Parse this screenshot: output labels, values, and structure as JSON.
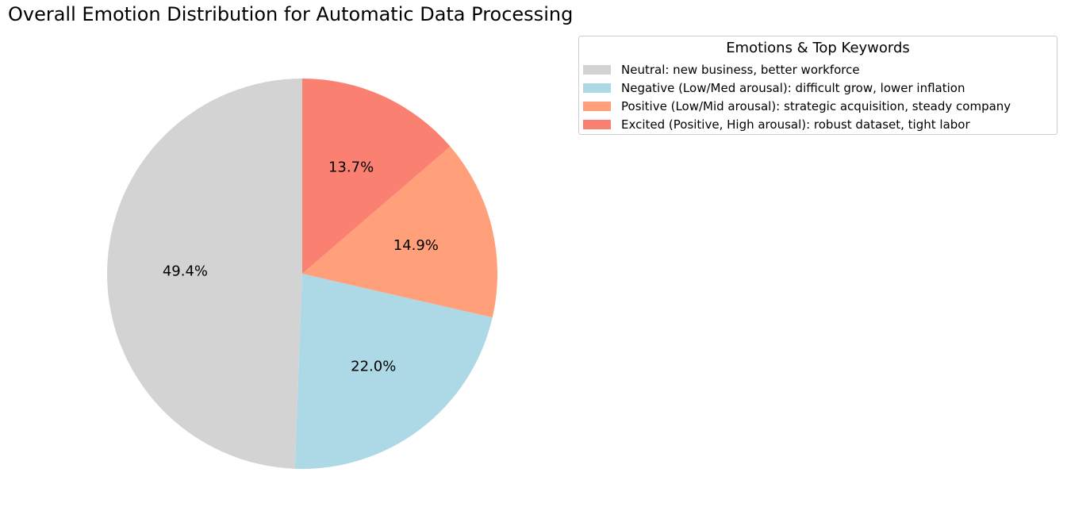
{
  "chart_data": {
    "type": "pie",
    "title": "Overall Emotion Distribution for Automatic Data Processing",
    "categories": [
      "Neutral: new business, better workforce",
      "Negative (Low/Med arousal): difficult grow, lower inflation",
      "Positive (Low/Mid arousal): strategic acquisition, steady company",
      "Excited (Positive, High arousal): robust dataset, tight labor"
    ],
    "values": [
      49.4,
      22.0,
      14.9,
      13.7
    ],
    "value_labels": [
      "49.4%",
      "22.0%",
      "14.9%",
      "13.7%"
    ],
    "colors": [
      "#d3d3d3",
      "#add8e6",
      "#ffa07a",
      "#fa8072"
    ],
    "legend_title": "Emotions & Top Keywords",
    "legend_position": "top-right",
    "start_angle_deg": 90,
    "direction": "counterclockwise"
  }
}
